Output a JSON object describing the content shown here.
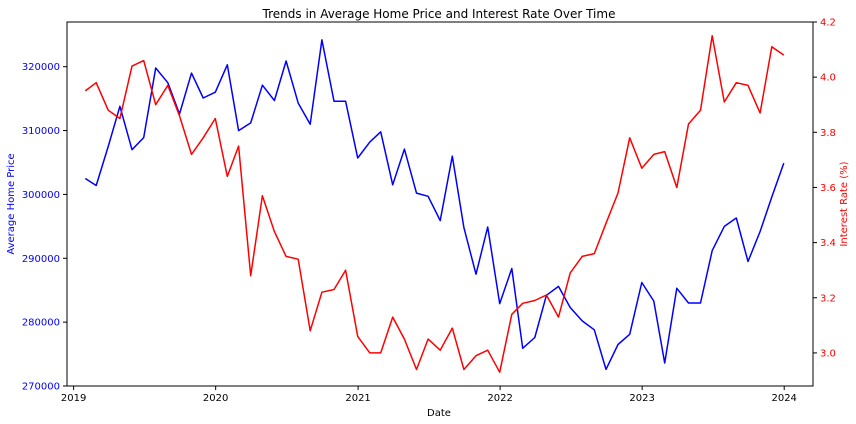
{
  "chart_data": {
    "type": "line",
    "title": "Trends in Average Home Price and Interest Rate Over Time",
    "xlabel": "Date",
    "x_ticks": [
      "2019",
      "2020",
      "2021",
      "2022",
      "2023",
      "2024"
    ],
    "x": [
      "2019-01-31",
      "2019-02-28",
      "2019-03-31",
      "2019-04-30",
      "2019-05-31",
      "2019-06-30",
      "2019-07-31",
      "2019-08-31",
      "2019-09-30",
      "2019-10-31",
      "2019-11-30",
      "2019-12-31",
      "2020-01-31",
      "2020-02-29",
      "2020-03-31",
      "2020-04-30",
      "2020-05-31",
      "2020-06-30",
      "2020-07-31",
      "2020-08-31",
      "2020-09-30",
      "2020-10-31",
      "2020-11-30",
      "2020-12-31",
      "2021-01-31",
      "2021-02-28",
      "2021-03-31",
      "2021-04-30",
      "2021-05-31",
      "2021-06-30",
      "2021-07-31",
      "2021-08-31",
      "2021-09-30",
      "2021-10-31",
      "2021-11-30",
      "2021-12-31",
      "2022-01-31",
      "2022-02-28",
      "2022-03-31",
      "2022-04-30",
      "2022-05-31",
      "2022-06-30",
      "2022-07-31",
      "2022-08-31",
      "2022-09-30",
      "2022-10-31",
      "2022-11-30",
      "2022-12-31",
      "2023-01-31",
      "2023-02-28",
      "2023-03-31",
      "2023-04-30",
      "2023-05-31",
      "2023-06-30",
      "2023-07-31",
      "2023-08-31",
      "2023-09-30",
      "2023-10-31",
      "2023-11-30",
      "2023-12-31"
    ],
    "y_left": {
      "label": "Average Home Price",
      "color": "#0000ff",
      "lim": [
        270000,
        327000
      ],
      "ticks": [
        270000,
        280000,
        290000,
        300000,
        310000,
        320000
      ]
    },
    "y_right": {
      "label": "Interest Rate (%)",
      "color": "#ff0000",
      "lim": [
        2.88,
        4.2
      ],
      "ticks": [
        3.0,
        3.2,
        3.4,
        3.6,
        3.8,
        4.0,
        4.2
      ],
      "tick_labels": [
        "3.0",
        "3.2",
        "3.4",
        "3.6",
        "3.8",
        "4.0",
        "4.2"
      ]
    },
    "series": [
      {
        "name": "Average Home Price",
        "axis": "left",
        "color": "#0000ff",
        "values": [
          302500,
          301400,
          307500,
          313800,
          307000,
          308900,
          319800,
          317500,
          312600,
          319000,
          315100,
          316000,
          320300,
          310000,
          311200,
          317100,
          314700,
          320900,
          314300,
          311000,
          324200,
          314600,
          314600,
          305700,
          308200,
          309800,
          301500,
          307100,
          300200,
          299700,
          295900,
          306000,
          294800,
          287500,
          294900,
          282900,
          288400,
          275900,
          277600,
          284200,
          285600,
          282300,
          280200,
          278800,
          272600,
          276500,
          278100,
          286200,
          283300,
          273600,
          285300,
          283000,
          283000,
          291200,
          295000,
          296300,
          289500,
          294200,
          299600,
          304900
        ]
      },
      {
        "name": "Interest Rate (%)",
        "axis": "right",
        "color": "#ff0000",
        "values": [
          3.95,
          3.98,
          3.88,
          3.85,
          4.04,
          4.06,
          3.9,
          3.97,
          3.86,
          3.72,
          3.78,
          3.85,
          3.64,
          3.75,
          3.28,
          3.57,
          3.44,
          3.35,
          3.34,
          3.08,
          3.22,
          3.23,
          3.3,
          3.06,
          3.0,
          3.0,
          3.13,
          3.05,
          2.94,
          3.05,
          3.01,
          3.09,
          2.94,
          2.99,
          3.01,
          2.93,
          3.14,
          3.18,
          3.19,
          3.21,
          3.13,
          3.29,
          3.35,
          3.36,
          3.47,
          3.58,
          3.78,
          3.67,
          3.72,
          3.73,
          3.6,
          3.83,
          3.88,
          4.15,
          3.91,
          3.98,
          3.97,
          3.87,
          4.11,
          4.08
        ]
      }
    ]
  }
}
